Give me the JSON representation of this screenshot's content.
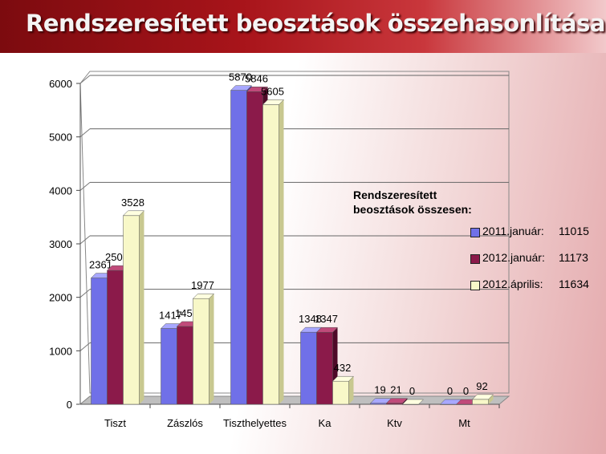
{
  "title": "Rendszeresített beosztások összehasonlítása",
  "legend": {
    "title_line1": "Rendszeresített",
    "title_line2": "beosztások összesen:",
    "items": [
      {
        "label": "2011.január:",
        "total": "11015",
        "color": "#7070e8"
      },
      {
        "label": "2012.január:",
        "total": "11173",
        "color": "#8b1a4a"
      },
      {
        "label": "2012.április:",
        "total": "11634",
        "color": "#f8f8c8"
      }
    ]
  },
  "chart_data": {
    "type": "bar",
    "categories": [
      "Tiszt",
      "Zászlós",
      "Tiszthelyettes",
      "Ka",
      "Ktv",
      "Mt"
    ],
    "series": [
      {
        "name": "2011.január",
        "values": [
          2361,
          1417,
          5870,
          1348,
          19,
          0
        ]
      },
      {
        "name": "2012.január",
        "values": [
          2503,
          1456,
          5846,
          1347,
          21,
          0
        ]
      },
      {
        "name": "2012.április",
        "values": [
          3528,
          1977,
          5605,
          432,
          0,
          92
        ]
      }
    ],
    "yticks": [
      0,
      1000,
      2000,
      3000,
      4000,
      5000,
      6000
    ],
    "ylim": [
      0,
      6000
    ],
    "grid": true,
    "legend_position": "right"
  }
}
